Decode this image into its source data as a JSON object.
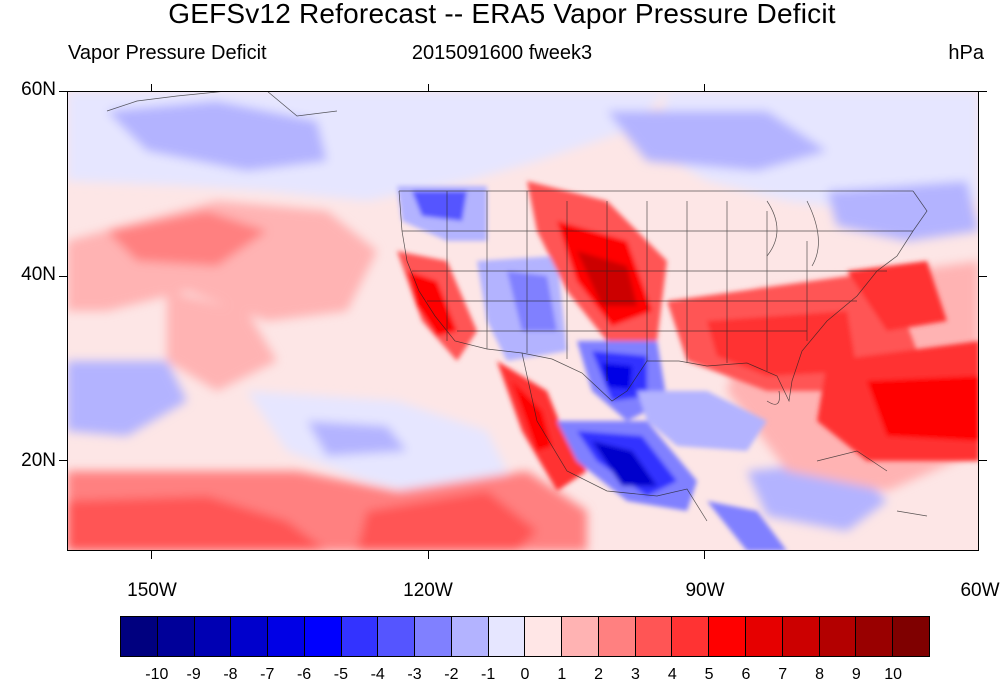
{
  "title": "GEFSv12 Reforecast -- ERA5 Vapor Pressure Deficit",
  "subtitle_left": "Vapor Pressure Deficit",
  "subtitle_center": "2015091600 fweek3",
  "subtitle_right": "hPa",
  "lat_labels": [
    "60N",
    "40N",
    "20N"
  ],
  "lon_labels": [
    "150W",
    "120W",
    "90W",
    "60W"
  ],
  "colorbar": {
    "colors": [
      "#00007f",
      "#000099",
      "#0000b3",
      "#0000cc",
      "#0000e6",
      "#0000ff",
      "#3333ff",
      "#5555ff",
      "#8080ff",
      "#b3b3ff",
      "#e6e6ff",
      "#ffe6e6",
      "#ffb3b3",
      "#ff8080",
      "#ff5555",
      "#ff3333",
      "#ff0000",
      "#e60000",
      "#cc0000",
      "#b30000",
      "#990000",
      "#7f0000"
    ],
    "labels": [
      "-10",
      "-9",
      "-8",
      "-7",
      "-6",
      "-5",
      "-4",
      "-3",
      "-2",
      "-1",
      "0",
      "1",
      "2",
      "3",
      "4",
      "5",
      "6",
      "7",
      "8",
      "9",
      "10"
    ]
  }
}
